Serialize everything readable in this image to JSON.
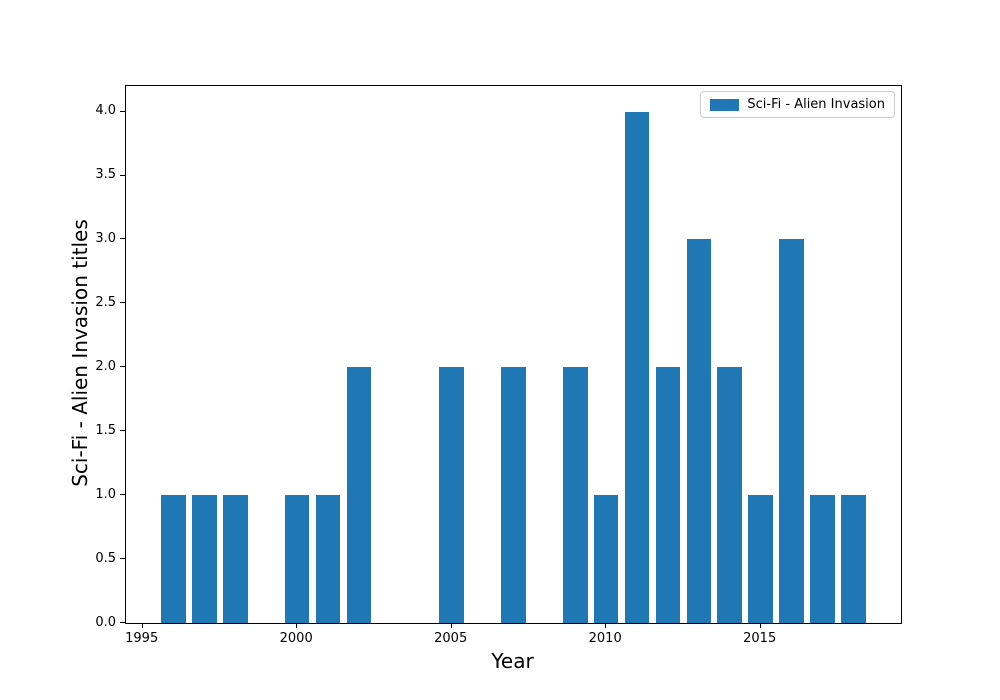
{
  "chart_data": {
    "type": "bar",
    "title": "",
    "xlabel": "Year",
    "ylabel": "Sci-Fi - Alien Invasion titles",
    "legend": {
      "label": "Sci-Fi - Alien Invasion",
      "position": "upper right"
    },
    "bar_color": "#1f77b4",
    "bar_width": 0.8,
    "x": [
      1996,
      1997,
      1998,
      1999,
      2000,
      2001,
      2002,
      2003,
      2004,
      2005,
      2006,
      2007,
      2008,
      2009,
      2010,
      2011,
      2012,
      2013,
      2014,
      2015,
      2016,
      2017,
      2018
    ],
    "values": [
      1,
      1,
      1,
      0,
      1,
      1,
      2,
      0,
      0,
      2,
      0,
      2,
      0,
      2,
      1,
      4,
      2,
      3,
      2,
      1,
      3,
      1,
      1
    ],
    "xlim": [
      1994.46,
      2019.54
    ],
    "ylim": [
      0,
      4.2
    ],
    "xticks": [
      "1995",
      "2000",
      "2005",
      "2010",
      "2015"
    ],
    "yticks": [
      "0.0",
      "0.5",
      "1.0",
      "1.5",
      "2.0",
      "2.5",
      "3.0",
      "3.5",
      "4.0"
    ],
    "grid": false
  }
}
